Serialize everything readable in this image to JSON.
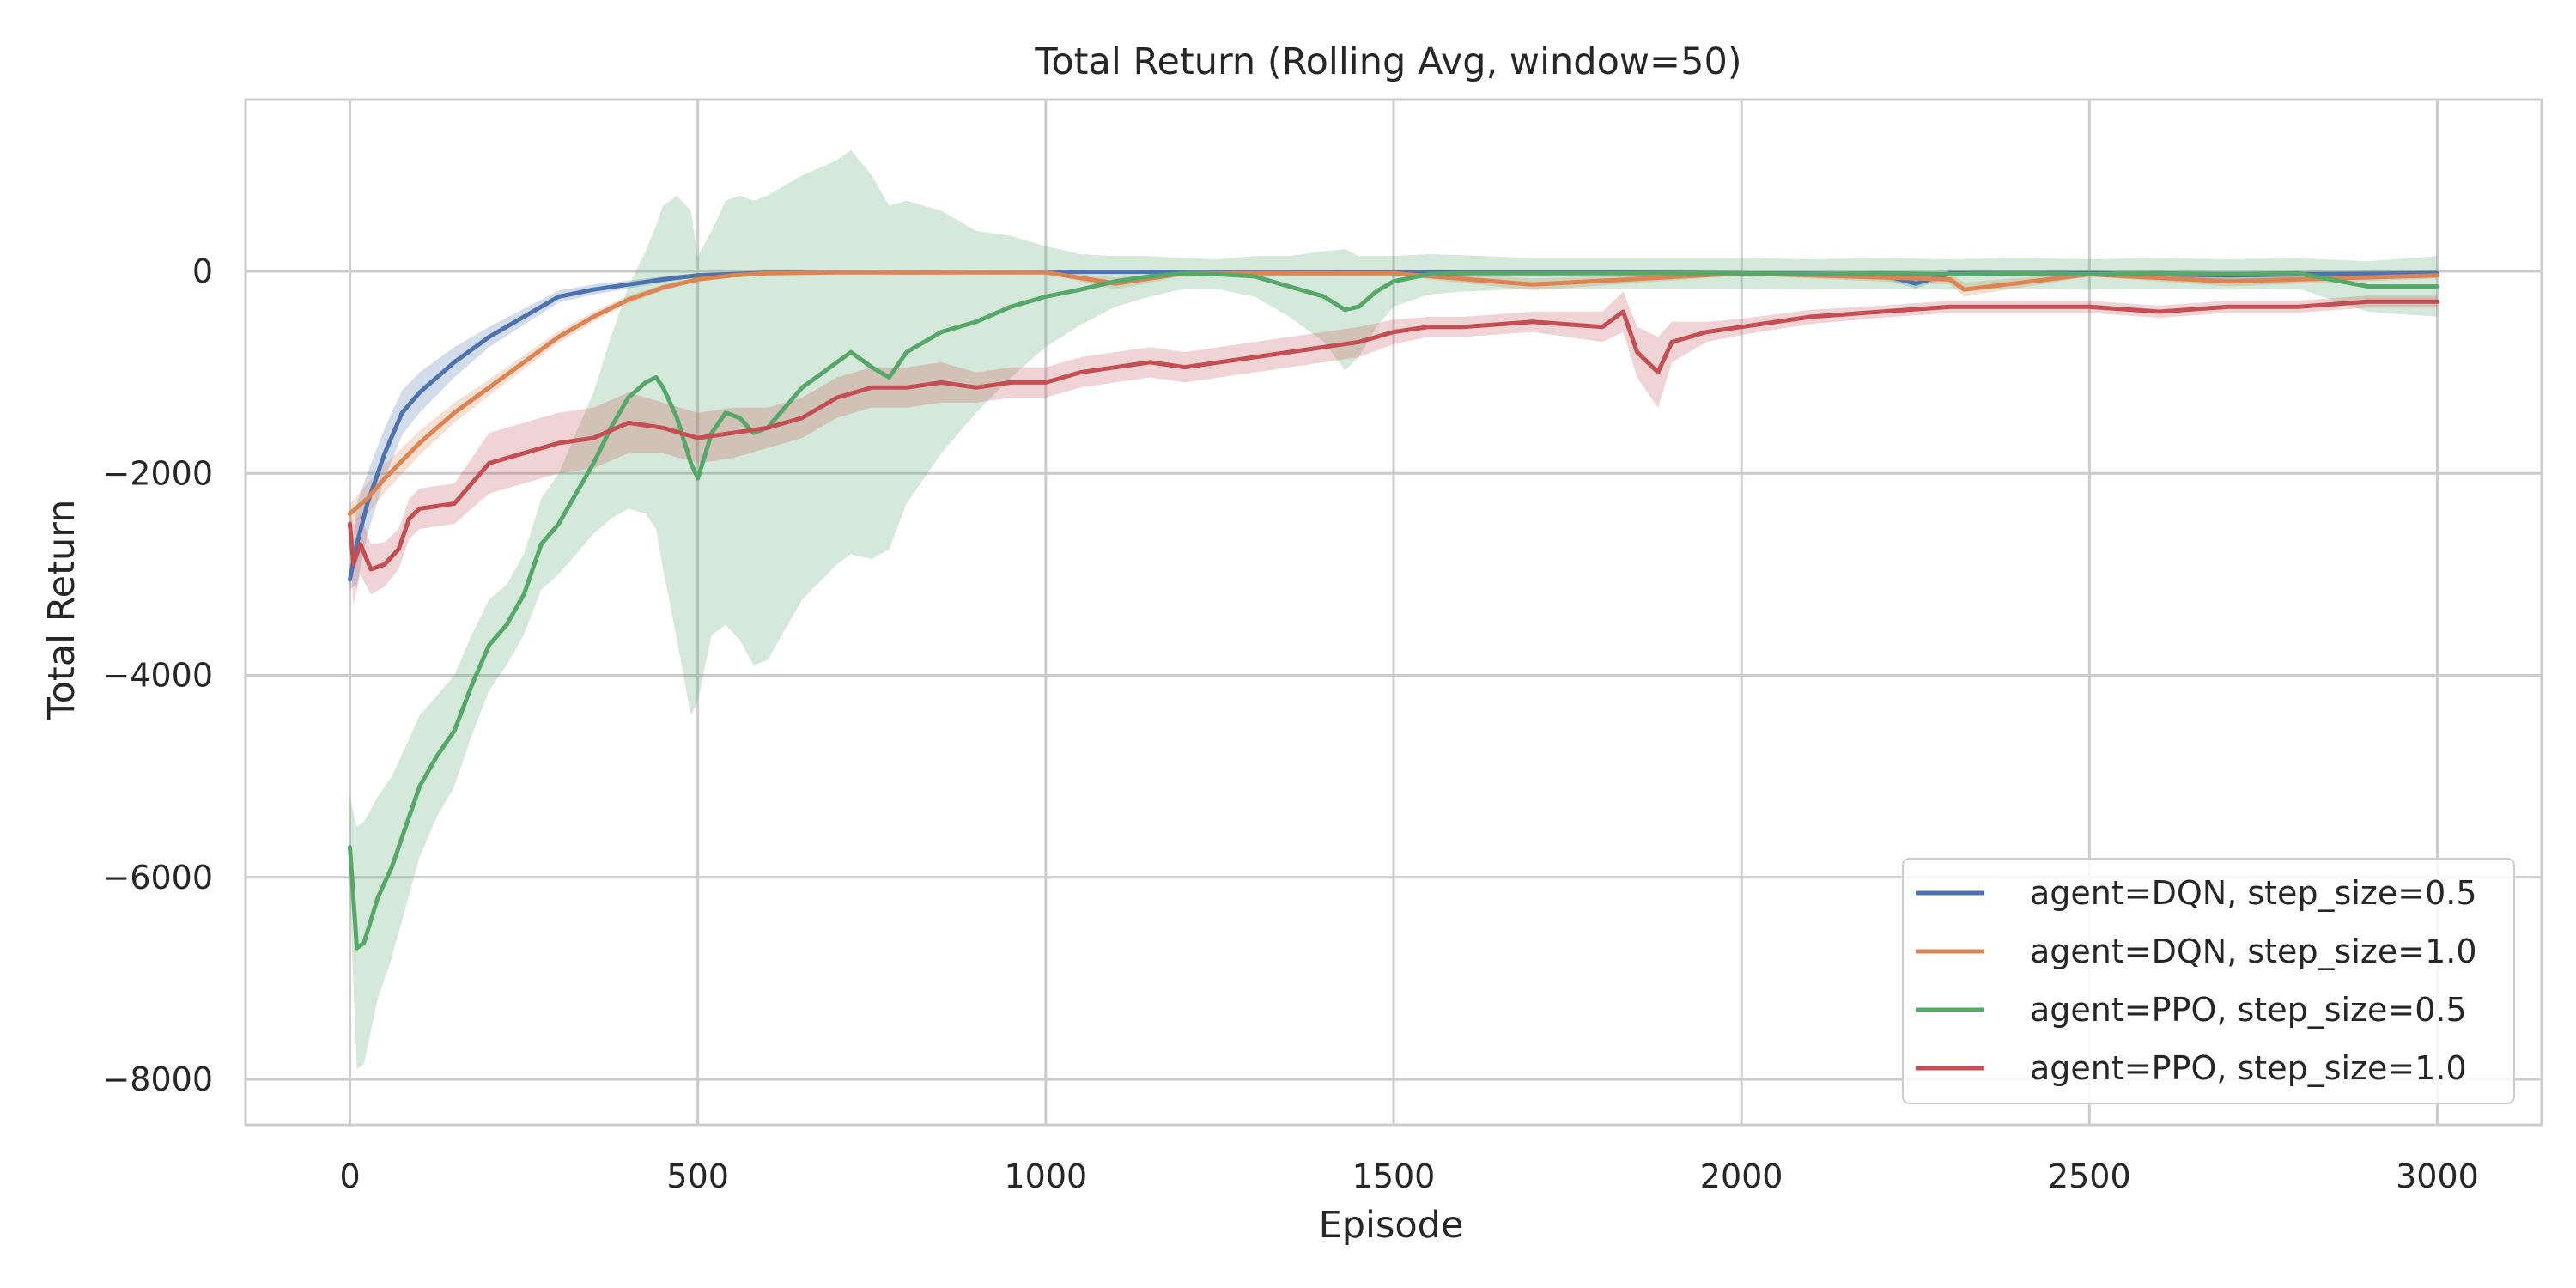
{
  "chart_data": {
    "type": "line",
    "title": "Total Return (Rolling Avg, window=50)",
    "xlabel": "Episode",
    "ylabel": "Total Return",
    "xlim": [
      -150,
      3150
    ],
    "ylim": [
      -8450,
      1700
    ],
    "xticks": [
      0,
      500,
      1000,
      1500,
      2000,
      2500,
      3000
    ],
    "xtick_labels": [
      "0",
      "500",
      "1000",
      "1500",
      "2000",
      "2500",
      "3000"
    ],
    "yticks": [
      0,
      -2000,
      -4000,
      -6000,
      -8000
    ],
    "ytick_labels": [
      "0",
      "−2000",
      "−4000",
      "−6000",
      "−8000"
    ],
    "grid": true,
    "legend_position": "lower-right",
    "series": [
      {
        "name": "agent=DQN, step_size=0.5",
        "color": "#4c72b0",
        "x": [
          0,
          10,
          25,
          50,
          75,
          100,
          150,
          200,
          250,
          300,
          350,
          400,
          450,
          500,
          600,
          700,
          800,
          1000,
          1200,
          1500,
          1800,
          2000,
          2200,
          2250,
          2300,
          2500,
          2700,
          2800,
          3000
        ],
        "y": [
          -3050,
          -2700,
          -2300,
          -1800,
          -1400,
          -1200,
          -900,
          -650,
          -450,
          -250,
          -180,
          -130,
          -80,
          -40,
          -15,
          -5,
          -10,
          -5,
          -5,
          -10,
          -10,
          -20,
          -30,
          -120,
          -20,
          -20,
          -40,
          -30,
          -20
        ],
        "band": [
          100,
          400,
          300,
          250,
          220,
          200,
          150,
          100,
          80,
          60,
          50,
          40,
          30,
          20,
          15,
          15,
          15,
          15,
          15,
          15,
          15,
          20,
          30,
          50,
          30,
          30,
          40,
          30,
          30
        ]
      },
      {
        "name": "agent=DQN, step_size=1.0",
        "color": "#dd8452",
        "x": [
          0,
          25,
          50,
          100,
          150,
          200,
          250,
          300,
          350,
          400,
          450,
          500,
          550,
          600,
          700,
          800,
          1000,
          1100,
          1200,
          1500,
          1700,
          2000,
          2300,
          2320,
          2500,
          2700,
          3000
        ],
        "y": [
          -2400,
          -2250,
          -2050,
          -1700,
          -1400,
          -1150,
          -900,
          -650,
          -450,
          -280,
          -160,
          -80,
          -40,
          -20,
          -10,
          -10,
          -10,
          -120,
          -20,
          -20,
          -130,
          -20,
          -80,
          -180,
          -30,
          -100,
          -40
        ],
        "band": [
          100,
          150,
          140,
          120,
          100,
          80,
          70,
          60,
          50,
          40,
          30,
          20,
          15,
          10,
          10,
          10,
          10,
          60,
          20,
          20,
          60,
          20,
          50,
          70,
          20,
          50,
          30
        ]
      },
      {
        "name": "agent=PPO, step_size=0.5",
        "color": "#55a868",
        "x": [
          0,
          10,
          20,
          40,
          60,
          80,
          100,
          125,
          150,
          175,
          200,
          225,
          250,
          275,
          300,
          325,
          350,
          375,
          400,
          425,
          440,
          450,
          470,
          490,
          500,
          520,
          540,
          560,
          580,
          600,
          625,
          650,
          700,
          720,
          750,
          775,
          800,
          850,
          900,
          950,
          1000,
          1050,
          1100,
          1150,
          1200,
          1250,
          1300,
          1350,
          1400,
          1430,
          1450,
          1475,
          1500,
          1550,
          1600,
          1700,
          1800,
          1900,
          2000,
          2100,
          2200,
          2300,
          2400,
          2500,
          2600,
          2700,
          2800,
          2900,
          3000
        ],
        "y": [
          -5700,
          -6700,
          -6650,
          -6200,
          -5900,
          -5500,
          -5100,
          -4800,
          -4550,
          -4100,
          -3700,
          -3500,
          -3200,
          -2700,
          -2500,
          -2200,
          -1900,
          -1550,
          -1250,
          -1100,
          -1050,
          -1150,
          -1450,
          -1900,
          -2050,
          -1600,
          -1400,
          -1450,
          -1600,
          -1550,
          -1350,
          -1150,
          -900,
          -800,
          -950,
          -1050,
          -800,
          -600,
          -500,
          -350,
          -250,
          -180,
          -100,
          -50,
          -20,
          -30,
          -50,
          -150,
          -250,
          -380,
          -350,
          -200,
          -100,
          -30,
          -20,
          -20,
          -20,
          -20,
          -20,
          -30,
          -20,
          -30,
          -20,
          -30,
          -20,
          -30,
          -20,
          -150,
          -150
        ],
        "band": [
          500,
          1200,
          1200,
          1000,
          900,
          800,
          700,
          600,
          550,
          500,
          450,
          400,
          400,
          450,
          500,
          600,
          700,
          900,
          1100,
          1300,
          1500,
          1800,
          2200,
          2500,
          2200,
          2000,
          2100,
          2200,
          2300,
          2300,
          2200,
          2100,
          2000,
          2000,
          1900,
          1700,
          1500,
          1200,
          900,
          700,
          500,
          350,
          250,
          200,
          150,
          150,
          200,
          300,
          450,
          600,
          500,
          350,
          250,
          200,
          180,
          150,
          150,
          150,
          150,
          150,
          150,
          150,
          150,
          150,
          150,
          150,
          150,
          250,
          300
        ]
      },
      {
        "name": "agent=PPO, step_size=1.0",
        "color": "#c44e52",
        "x": [
          0,
          5,
          15,
          30,
          50,
          70,
          85,
          100,
          150,
          175,
          200,
          250,
          300,
          350,
          400,
          450,
          500,
          550,
          600,
          650,
          700,
          750,
          800,
          850,
          900,
          950,
          1000,
          1050,
          1100,
          1150,
          1200,
          1300,
          1400,
          1450,
          1500,
          1550,
          1600,
          1700,
          1800,
          1830,
          1850,
          1880,
          1900,
          1950,
          2000,
          2100,
          2200,
          2300,
          2400,
          2500,
          2600,
          2700,
          2800,
          2900,
          3000
        ],
        "y": [
          -2500,
          -2900,
          -2700,
          -2950,
          -2900,
          -2750,
          -2450,
          -2350,
          -2300,
          -2100,
          -1900,
          -1800,
          -1700,
          -1650,
          -1500,
          -1550,
          -1650,
          -1600,
          -1550,
          -1450,
          -1250,
          -1150,
          -1150,
          -1100,
          -1150,
          -1100,
          -1100,
          -1000,
          -950,
          -900,
          -950,
          -850,
          -750,
          -700,
          -600,
          -550,
          -550,
          -500,
          -550,
          -400,
          -800,
          -1000,
          -700,
          -600,
          -550,
          -450,
          -400,
          -350,
          -350,
          -350,
          -400,
          -350,
          -350,
          -300,
          -300
        ],
        "band": [
          150,
          400,
          300,
          250,
          220,
          200,
          200,
          200,
          200,
          250,
          300,
          300,
          300,
          300,
          300,
          250,
          250,
          250,
          200,
          200,
          200,
          200,
          200,
          200,
          150,
          150,
          150,
          150,
          150,
          150,
          150,
          150,
          150,
          150,
          120,
          100,
          100,
          100,
          150,
          200,
          250,
          350,
          200,
          100,
          80,
          70,
          60,
          60,
          60,
          60,
          60,
          60,
          60,
          60,
          60
        ]
      }
    ]
  }
}
